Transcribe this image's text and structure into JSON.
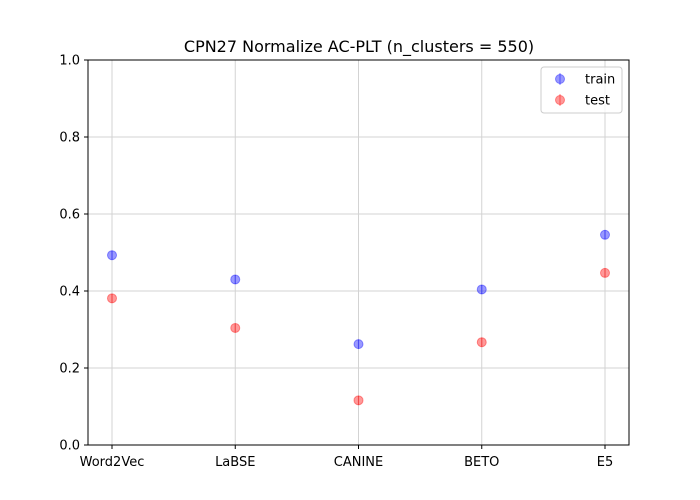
{
  "chart_data": {
    "type": "scatter",
    "title": "CPN27 Normalize AC-PLT (n_clusters = 550)",
    "xlabel": "",
    "ylabel": "",
    "categories": [
      "Word2Vec",
      "LaBSE",
      "CANINE",
      "BETO",
      "E5"
    ],
    "ylim": [
      0,
      1.0
    ],
    "yticks": [
      "0.0",
      "0.2",
      "0.4",
      "0.6",
      "0.8",
      "1.0"
    ],
    "grid": true,
    "legend_position": "top-right",
    "series": [
      {
        "name": "train",
        "color": "#0000ff",
        "values": [
          0.493,
          0.43,
          0.262,
          0.404,
          0.546
        ]
      },
      {
        "name": "test",
        "color": "#ff0000",
        "values": [
          0.381,
          0.304,
          0.116,
          0.267,
          0.447
        ]
      }
    ]
  }
}
